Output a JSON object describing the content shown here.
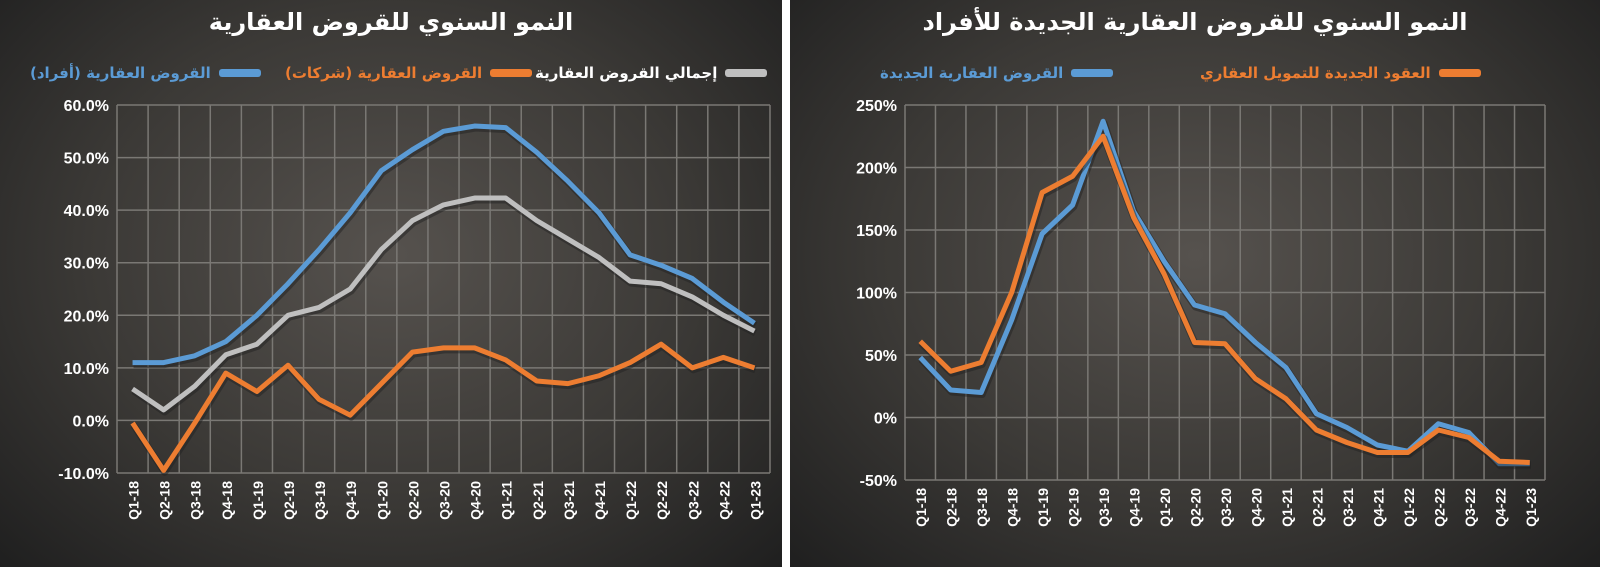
{
  "chart_data": [
    {
      "type": "line",
      "title": "النمو السنوي للقروض العقارية",
      "categories": [
        "Q1-18",
        "Q2-18",
        "Q3-18",
        "Q4-18",
        "Q1-19",
        "Q2-19",
        "Q3-19",
        "Q4-19",
        "Q1-20",
        "Q2-20",
        "Q3-20",
        "Q4-20",
        "Q1-21",
        "Q2-21",
        "Q3-21",
        "Q4-21",
        "Q1-22",
        "Q2-22",
        "Q3-22",
        "Q4-22",
        "Q1-23"
      ],
      "ylim": [
        -10,
        60
      ],
      "yticks": [
        "-10.0%",
        "0.0%",
        "10.0%",
        "20.0%",
        "30.0%",
        "40.0%",
        "50.0%",
        "60.0%"
      ],
      "grid": true,
      "legend": "top",
      "series": [
        {
          "name": "القروض العقارية (أفراد)",
          "color": "#5b9bd5",
          "values": [
            11,
            11,
            12.3,
            15,
            20,
            26,
            32.5,
            39.5,
            47.5,
            51.5,
            55,
            56,
            55.7,
            51,
            45.5,
            39.5,
            31.5,
            29.5,
            27,
            22.5,
            18.5
          ]
        },
        {
          "name": "القروض العقارية (شركات)",
          "color": "#ed7d31",
          "values": [
            -0.5,
            -9.5,
            -0.5,
            9,
            5.5,
            10.5,
            4,
            1,
            7,
            13,
            13.8,
            13.8,
            11.5,
            7.5,
            7,
            8.5,
            11,
            14.5,
            10,
            12,
            10
          ]
        },
        {
          "name": "إجمالي القروض العقارية",
          "color": "#bfbfbf",
          "values": [
            6,
            2,
            6.5,
            12.5,
            14.5,
            20,
            21.5,
            25,
            32.5,
            38,
            41,
            42.3,
            42.3,
            38,
            34.5,
            31,
            26.5,
            26,
            23.5,
            20,
            17
          ]
        }
      ]
    },
    {
      "type": "line",
      "title": "النمو السنوي للقروض العقارية الجديدة للأفراد",
      "categories": [
        "Q1-18",
        "Q2-18",
        "Q3-18",
        "Q4-18",
        "Q1-19",
        "Q2-19",
        "Q3-19",
        "Q4-19",
        "Q1-20",
        "Q2-20",
        "Q3-20",
        "Q4-20",
        "Q1-21",
        "Q2-21",
        "Q3-21",
        "Q4-21",
        "Q1-22",
        "Q2-22",
        "Q3-22",
        "Q4-22",
        "Q1-23"
      ],
      "ylim": [
        -50,
        250
      ],
      "yticks": [
        "-50%",
        "0%",
        "50%",
        "100%",
        "150%",
        "200%",
        "250%"
      ],
      "grid": true,
      "legend": "top",
      "series": [
        {
          "name": "القروض العقارية الجديدة",
          "color": "#5b9bd5",
          "values": [
            48,
            22,
            20,
            78,
            147,
            170,
            237,
            165,
            125,
            90,
            83,
            60,
            40,
            3,
            -8,
            -22,
            -27,
            -5,
            -12,
            -37,
            -37
          ]
        },
        {
          "name": "العقود الجديدة للتمويل العقاري",
          "color": "#ed7d31",
          "values": [
            61,
            37,
            44,
            100,
            180,
            193,
            225,
            160,
            115,
            60,
            59,
            31,
            15,
            -10,
            -20,
            -28,
            -28,
            -10,
            -16,
            -35,
            -36
          ]
        }
      ]
    }
  ]
}
